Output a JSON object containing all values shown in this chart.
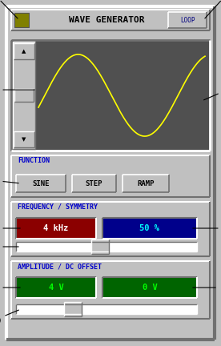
{
  "bg_color": "#c0c0c0",
  "title_text": "WAVE GENERATOR",
  "loop_text": "LOOP",
  "function_label": "FUNCTION",
  "freq_sym_label": "FREQUENCY / SYMMETRY",
  "amp_dc_label": "AMPLITUDE / DC OFFSET",
  "sine_text": "SINE",
  "step_text": "STEP",
  "ramp_text": "RAMP",
  "freq_text": "4 kHz",
  "sym_text": "50 %",
  "amp_text": "4 V",
  "dc_text": "0 V",
  "freq_color": "#8b0000",
  "sym_color": "#00008b",
  "amp_color": "#006400",
  "dc_color": "#006400",
  "wave_bg": "#505050",
  "wave_color": "#ffff00",
  "label_color": "#0000cc",
  "title_icon_color": "#808000",
  "figw": 2.76,
  "figh": 4.32,
  "dpi": 100
}
